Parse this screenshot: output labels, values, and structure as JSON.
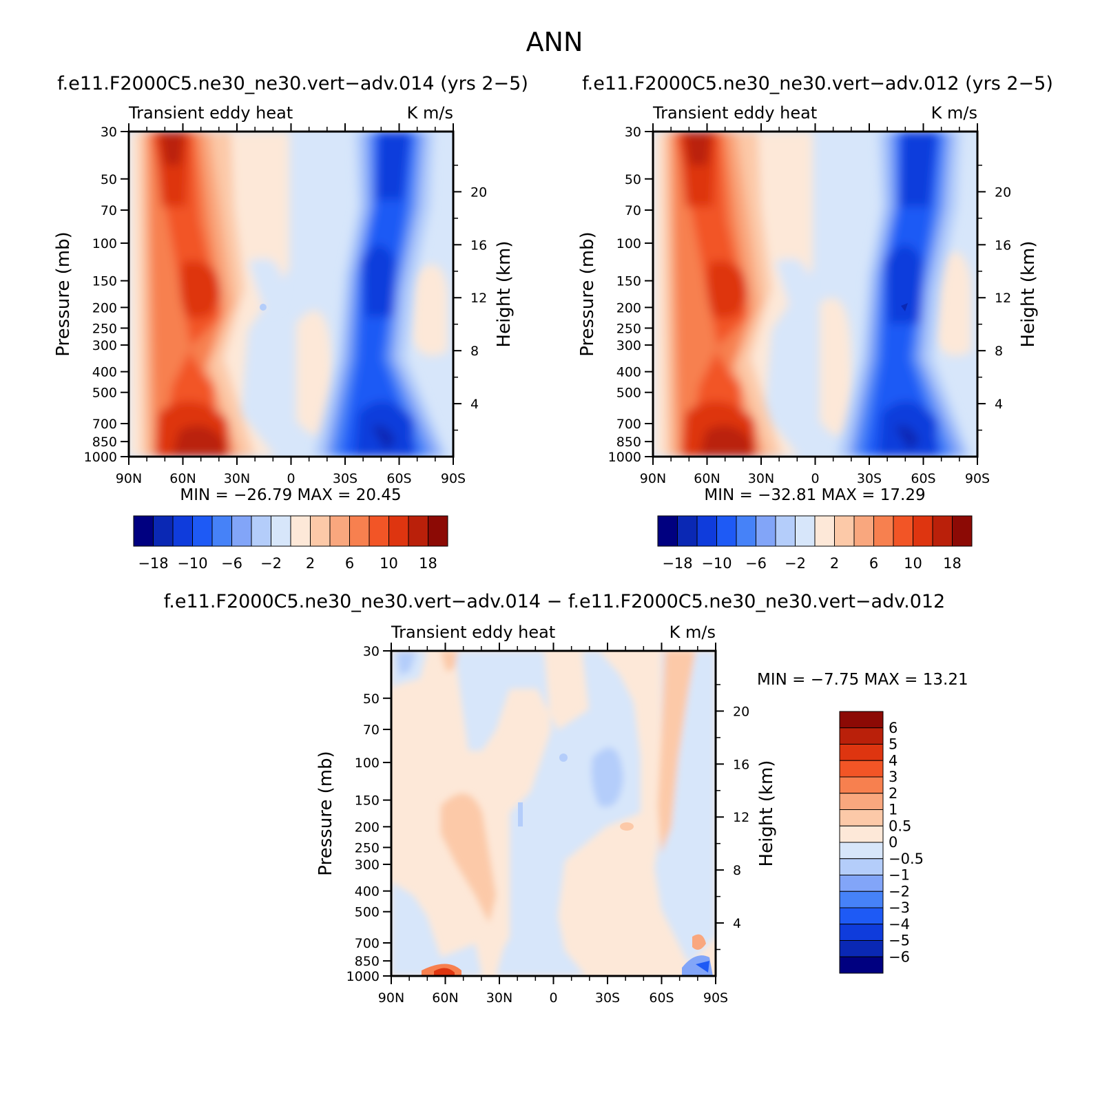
{
  "page_title": "ANN",
  "colormaps": {
    "model": [
      "#000080",
      "#0a28b4",
      "#0f3cdc",
      "#1e5af5",
      "#4682f8",
      "#82a5f8",
      "#b4cdfa",
      "#d7e6fa",
      "#fde8d8",
      "#fcc9a8",
      "#f9a77e",
      "#f7804f",
      "#f25526",
      "#de3510",
      "#ba200a",
      "#8c0a05"
    ],
    "diff": [
      "#000080",
      "#0a28b4",
      "#0f3cdc",
      "#1e5af5",
      "#4682f8",
      "#82a5f8",
      "#b4cdfa",
      "#d7e6fa",
      "#fde8d8",
      "#fcc9a8",
      "#f9a77e",
      "#f7804f",
      "#f25526",
      "#de3510",
      "#ba200a",
      "#8c0a05"
    ]
  },
  "chart_data": [
    {
      "type": "heatmap",
      "title": "f.e11.F2000C5.ne30_ne30.vert-adv.014 (yrs 2-5)",
      "title_display": "f.e11.F2000C5.ne30_ne30.vert−adv.014 (yrs 2−5)",
      "subtitle_left": "Transient eddy heat",
      "subtitle_right": "K m/s",
      "ylabel": "Pressure (mb)",
      "ylabel_right": "Height (km)",
      "x_ticks": [
        "90N",
        "60N",
        "30N",
        "0",
        "30S",
        "60S",
        "90S"
      ],
      "x_values": [
        90,
        60,
        30,
        0,
        -30,
        -60,
        -90
      ],
      "y_ticks": [
        30,
        50,
        70,
        100,
        150,
        200,
        250,
        300,
        400,
        500,
        700,
        850,
        1000
      ],
      "y_ticks_right": [
        4,
        8,
        12,
        16,
        20
      ],
      "ylim": [
        1000,
        30
      ],
      "y_log": true,
      "min_max_text": "MIN = −26.79   MAX =  20.45",
      "min": -26.79,
      "max": 20.45,
      "colorbar_labels": [
        "−18",
        "−10",
        "−6",
        "−2",
        "2",
        "6",
        "10",
        "18"
      ],
      "colorbar_orientation": "horizontal"
    },
    {
      "type": "heatmap",
      "title": "f.e11.F2000C5.ne30_ne30.vert-adv.012 (yrs 2-5)",
      "title_display": "f.e11.F2000C5.ne30_ne30.vert−adv.012 (yrs 2−5)",
      "subtitle_left": "Transient eddy heat",
      "subtitle_right": "K m/s",
      "ylabel": "Pressure (mb)",
      "ylabel_right": "Height (km)",
      "x_ticks": [
        "90N",
        "60N",
        "30N",
        "0",
        "30S",
        "60S",
        "90S"
      ],
      "x_values": [
        90,
        60,
        30,
        0,
        -30,
        -60,
        -90
      ],
      "y_ticks": [
        30,
        50,
        70,
        100,
        150,
        200,
        250,
        300,
        400,
        500,
        700,
        850,
        1000
      ],
      "y_ticks_right": [
        4,
        8,
        12,
        16,
        20
      ],
      "ylim": [
        1000,
        30
      ],
      "y_log": true,
      "min_max_text": "MIN = −32.81   MAX =  17.29",
      "min": -32.81,
      "max": 17.29,
      "colorbar_labels": [
        "−18",
        "−10",
        "−6",
        "−2",
        "2",
        "6",
        "10",
        "18"
      ],
      "colorbar_orientation": "horizontal"
    },
    {
      "type": "heatmap",
      "title": "f.e11.F2000C5.ne30_ne30.vert-adv.014 - f.e11.F2000C5.ne30_ne30.vert-adv.012",
      "title_display": "f.e11.F2000C5.ne30_ne30.vert−adv.014 − f.e11.F2000C5.ne30_ne30.vert−adv.012",
      "subtitle_left": "Transient eddy heat",
      "subtitle_right": "K m/s",
      "ylabel": "Pressure (mb)",
      "ylabel_right": "Height (km)",
      "x_ticks": [
        "90N",
        "60N",
        "30N",
        "0",
        "30S",
        "60S",
        "90S"
      ],
      "x_values": [
        90,
        60,
        30,
        0,
        -30,
        -60,
        -90
      ],
      "y_ticks": [
        30,
        50,
        70,
        100,
        150,
        200,
        250,
        300,
        400,
        500,
        700,
        850,
        1000
      ],
      "y_ticks_right": [
        4,
        8,
        12,
        16,
        20
      ],
      "ylim": [
        1000,
        30
      ],
      "y_log": true,
      "min_max_text": "MIN =   −7.75   MAX =   13.21",
      "min": -7.75,
      "max": 13.21,
      "colorbar_labels": [
        "6",
        "5",
        "4",
        "3",
        "2",
        "1",
        "0.5",
        "0",
        "−0.5",
        "−1",
        "−2",
        "−3",
        "−4",
        "−5",
        "−6"
      ],
      "colorbar_orientation": "vertical"
    }
  ]
}
